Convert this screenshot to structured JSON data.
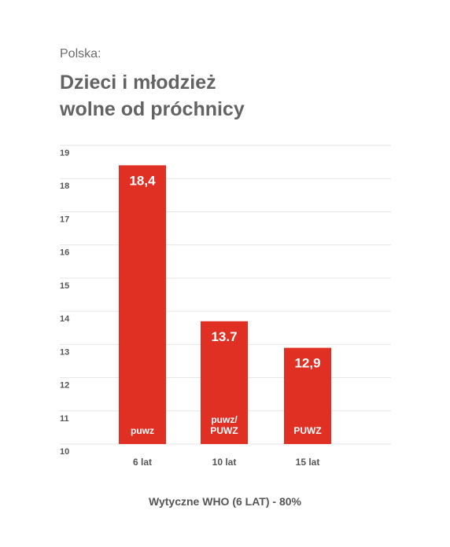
{
  "header": {
    "pre_title": "Polska:",
    "title_line1": "Dzieci i młodzież",
    "title_line2": "wolne od próchnicy"
  },
  "chart_data": {
    "type": "bar",
    "title": "Dzieci i młodzież wolne od próchnicy",
    "categories": [
      "6 lat",
      "10 lat",
      "15 lat"
    ],
    "values": [
      18.4,
      13.7,
      12.9
    ],
    "value_labels": [
      "18,4",
      "13.7",
      "12,9"
    ],
    "inner_labels": [
      [
        "puwz"
      ],
      [
        "puwz/",
        "PUWZ"
      ],
      [
        "PUWZ"
      ]
    ],
    "yticks": [
      10,
      11,
      12,
      13,
      14,
      15,
      16,
      17,
      18,
      19
    ],
    "ylim": [
      10,
      19
    ],
    "grid": true,
    "bar_color": "#e03024",
    "footnote": "Wytyczne WHO (6 LAT) - 80%"
  }
}
